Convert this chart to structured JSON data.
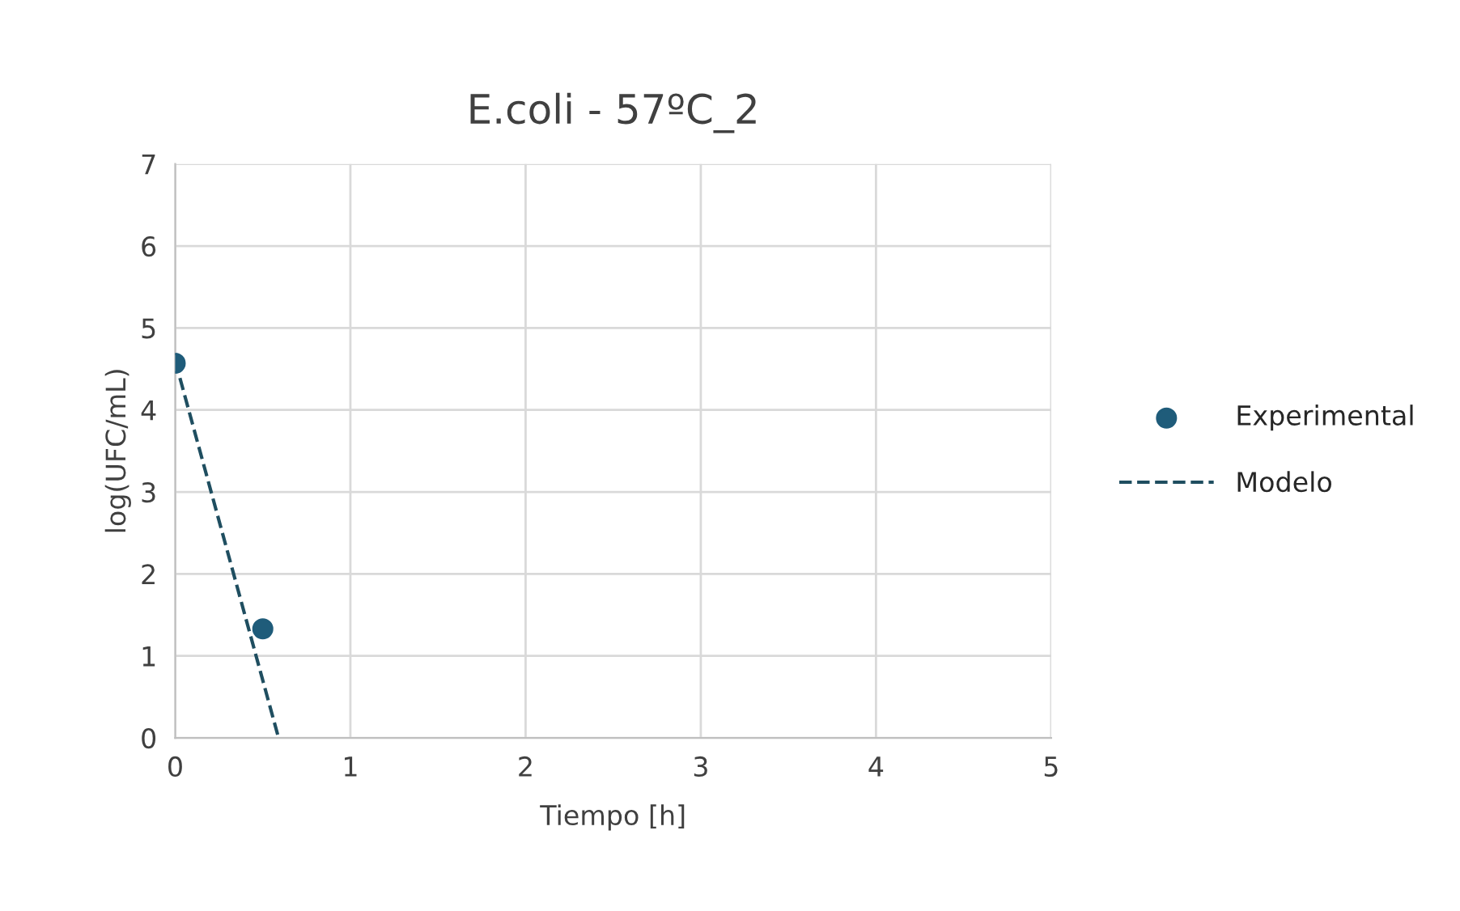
{
  "chart_data": {
    "type": "scatter",
    "title": "E.coli - 57ºC_2",
    "xlabel": "Tiempo [h]",
    "ylabel": "log(UFC/mL)",
    "xlim": [
      0,
      5
    ],
    "xticks": [
      0,
      1,
      2,
      3,
      4,
      5
    ],
    "ylim": [
      0,
      7
    ],
    "yticks": [
      0,
      1,
      2,
      3,
      4,
      5,
      6,
      7
    ],
    "grid": true,
    "legend": "right",
    "series": [
      {
        "name": "Experimental",
        "color": "#1f5c7a",
        "marker": "circle",
        "x": [
          0,
          0.5
        ],
        "values": [
          4.57,
          1.33
        ]
      },
      {
        "name": "Modelo",
        "type": "line",
        "color": "#1f4e60",
        "line_style": "dashed",
        "marker": "none",
        "x": [
          0,
          0.59
        ],
        "values": [
          4.6,
          0
        ]
      }
    ]
  }
}
